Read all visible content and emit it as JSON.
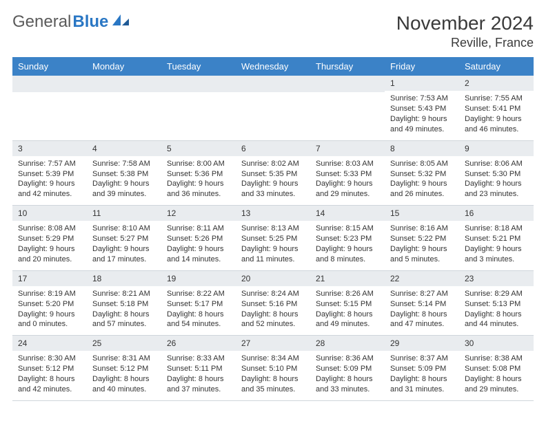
{
  "brand": {
    "general": "General",
    "blue": "Blue",
    "logo_color": "#2a77c4"
  },
  "title": {
    "month": "November 2024",
    "location": "Reville, France"
  },
  "colors": {
    "header_bg": "#3b82c7",
    "header_text": "#ffffff",
    "daynum_bg": "#e9ecef",
    "border": "#cfd5db",
    "text": "#333333"
  },
  "fonts": {
    "month_size_pt": 21,
    "location_size_pt": 14,
    "dayheader_size_pt": 10,
    "body_size_pt": 8
  },
  "day_headers": [
    "Sunday",
    "Monday",
    "Tuesday",
    "Wednesday",
    "Thursday",
    "Friday",
    "Saturday"
  ],
  "weeks": [
    [
      null,
      null,
      null,
      null,
      null,
      {
        "n": "1",
        "sr": "Sunrise: 7:53 AM",
        "ss": "Sunset: 5:43 PM",
        "d1": "Daylight: 9 hours",
        "d2": "and 49 minutes."
      },
      {
        "n": "2",
        "sr": "Sunrise: 7:55 AM",
        "ss": "Sunset: 5:41 PM",
        "d1": "Daylight: 9 hours",
        "d2": "and 46 minutes."
      }
    ],
    [
      {
        "n": "3",
        "sr": "Sunrise: 7:57 AM",
        "ss": "Sunset: 5:39 PM",
        "d1": "Daylight: 9 hours",
        "d2": "and 42 minutes."
      },
      {
        "n": "4",
        "sr": "Sunrise: 7:58 AM",
        "ss": "Sunset: 5:38 PM",
        "d1": "Daylight: 9 hours",
        "d2": "and 39 minutes."
      },
      {
        "n": "5",
        "sr": "Sunrise: 8:00 AM",
        "ss": "Sunset: 5:36 PM",
        "d1": "Daylight: 9 hours",
        "d2": "and 36 minutes."
      },
      {
        "n": "6",
        "sr": "Sunrise: 8:02 AM",
        "ss": "Sunset: 5:35 PM",
        "d1": "Daylight: 9 hours",
        "d2": "and 33 minutes."
      },
      {
        "n": "7",
        "sr": "Sunrise: 8:03 AM",
        "ss": "Sunset: 5:33 PM",
        "d1": "Daylight: 9 hours",
        "d2": "and 29 minutes."
      },
      {
        "n": "8",
        "sr": "Sunrise: 8:05 AM",
        "ss": "Sunset: 5:32 PM",
        "d1": "Daylight: 9 hours",
        "d2": "and 26 minutes."
      },
      {
        "n": "9",
        "sr": "Sunrise: 8:06 AM",
        "ss": "Sunset: 5:30 PM",
        "d1": "Daylight: 9 hours",
        "d2": "and 23 minutes."
      }
    ],
    [
      {
        "n": "10",
        "sr": "Sunrise: 8:08 AM",
        "ss": "Sunset: 5:29 PM",
        "d1": "Daylight: 9 hours",
        "d2": "and 20 minutes."
      },
      {
        "n": "11",
        "sr": "Sunrise: 8:10 AM",
        "ss": "Sunset: 5:27 PM",
        "d1": "Daylight: 9 hours",
        "d2": "and 17 minutes."
      },
      {
        "n": "12",
        "sr": "Sunrise: 8:11 AM",
        "ss": "Sunset: 5:26 PM",
        "d1": "Daylight: 9 hours",
        "d2": "and 14 minutes."
      },
      {
        "n": "13",
        "sr": "Sunrise: 8:13 AM",
        "ss": "Sunset: 5:25 PM",
        "d1": "Daylight: 9 hours",
        "d2": "and 11 minutes."
      },
      {
        "n": "14",
        "sr": "Sunrise: 8:15 AM",
        "ss": "Sunset: 5:23 PM",
        "d1": "Daylight: 9 hours",
        "d2": "and 8 minutes."
      },
      {
        "n": "15",
        "sr": "Sunrise: 8:16 AM",
        "ss": "Sunset: 5:22 PM",
        "d1": "Daylight: 9 hours",
        "d2": "and 5 minutes."
      },
      {
        "n": "16",
        "sr": "Sunrise: 8:18 AM",
        "ss": "Sunset: 5:21 PM",
        "d1": "Daylight: 9 hours",
        "d2": "and 3 minutes."
      }
    ],
    [
      {
        "n": "17",
        "sr": "Sunrise: 8:19 AM",
        "ss": "Sunset: 5:20 PM",
        "d1": "Daylight: 9 hours",
        "d2": "and 0 minutes."
      },
      {
        "n": "18",
        "sr": "Sunrise: 8:21 AM",
        "ss": "Sunset: 5:18 PM",
        "d1": "Daylight: 8 hours",
        "d2": "and 57 minutes."
      },
      {
        "n": "19",
        "sr": "Sunrise: 8:22 AM",
        "ss": "Sunset: 5:17 PM",
        "d1": "Daylight: 8 hours",
        "d2": "and 54 minutes."
      },
      {
        "n": "20",
        "sr": "Sunrise: 8:24 AM",
        "ss": "Sunset: 5:16 PM",
        "d1": "Daylight: 8 hours",
        "d2": "and 52 minutes."
      },
      {
        "n": "21",
        "sr": "Sunrise: 8:26 AM",
        "ss": "Sunset: 5:15 PM",
        "d1": "Daylight: 8 hours",
        "d2": "and 49 minutes."
      },
      {
        "n": "22",
        "sr": "Sunrise: 8:27 AM",
        "ss": "Sunset: 5:14 PM",
        "d1": "Daylight: 8 hours",
        "d2": "and 47 minutes."
      },
      {
        "n": "23",
        "sr": "Sunrise: 8:29 AM",
        "ss": "Sunset: 5:13 PM",
        "d1": "Daylight: 8 hours",
        "d2": "and 44 minutes."
      }
    ],
    [
      {
        "n": "24",
        "sr": "Sunrise: 8:30 AM",
        "ss": "Sunset: 5:12 PM",
        "d1": "Daylight: 8 hours",
        "d2": "and 42 minutes."
      },
      {
        "n": "25",
        "sr": "Sunrise: 8:31 AM",
        "ss": "Sunset: 5:12 PM",
        "d1": "Daylight: 8 hours",
        "d2": "and 40 minutes."
      },
      {
        "n": "26",
        "sr": "Sunrise: 8:33 AM",
        "ss": "Sunset: 5:11 PM",
        "d1": "Daylight: 8 hours",
        "d2": "and 37 minutes."
      },
      {
        "n": "27",
        "sr": "Sunrise: 8:34 AM",
        "ss": "Sunset: 5:10 PM",
        "d1": "Daylight: 8 hours",
        "d2": "and 35 minutes."
      },
      {
        "n": "28",
        "sr": "Sunrise: 8:36 AM",
        "ss": "Sunset: 5:09 PM",
        "d1": "Daylight: 8 hours",
        "d2": "and 33 minutes."
      },
      {
        "n": "29",
        "sr": "Sunrise: 8:37 AM",
        "ss": "Sunset: 5:09 PM",
        "d1": "Daylight: 8 hours",
        "d2": "and 31 minutes."
      },
      {
        "n": "30",
        "sr": "Sunrise: 8:38 AM",
        "ss": "Sunset: 5:08 PM",
        "d1": "Daylight: 8 hours",
        "d2": "and 29 minutes."
      }
    ]
  ]
}
